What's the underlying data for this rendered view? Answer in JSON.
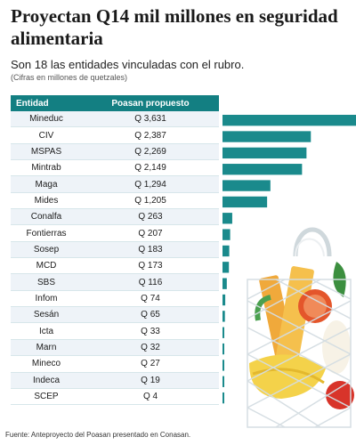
{
  "header": {
    "title": "Proyectan Q14 mil millones en seguridad alimentaria",
    "subtitle": "Son 18 las entidades vinculadas con el rubro.",
    "note": "(Cifras en millones de quetzales)"
  },
  "table": {
    "col_entity": "Entidad",
    "col_value": "Poasan propuesto"
  },
  "footer": {
    "source": "Fuente: Anteproyecto del Poasan presentado en Conasan."
  },
  "colors": {
    "accent": "#137f82",
    "bar": "#1a8a8c"
  },
  "chart_data": {
    "type": "bar",
    "categories": [
      "Mineduc",
      "CIV",
      "MSPAS",
      "Mintrab",
      "Maga",
      "Mides",
      "Conalfa",
      "Fontierras",
      "Sosep",
      "MCD",
      "SBS",
      "Infom",
      "Sesán",
      "Icta",
      "Marn",
      "Mineco",
      "Indeca",
      "SCEP"
    ],
    "values": [
      3631,
      2387,
      2269,
      2149,
      1294,
      1205,
      263,
      207,
      183,
      173,
      116,
      74,
      65,
      33,
      32,
      27,
      19,
      4
    ],
    "value_labels": [
      "Q 3,631",
      "Q 2,387",
      "Q 2,269",
      "Q 2,149",
      "Q 1,294",
      "Q 1,205",
      "Q 263",
      "Q 207",
      "Q 183",
      "Q 173",
      "Q 116",
      "Q 74",
      "Q 65",
      "Q 33",
      "Q 32",
      "Q 27",
      "Q 19",
      "Q 4"
    ],
    "title": "Proyectan Q14 mil millones en seguridad alimentaria",
    "xlabel": "Entidad",
    "ylabel": "Poasan propuesto",
    "orientation": "horizontal"
  }
}
